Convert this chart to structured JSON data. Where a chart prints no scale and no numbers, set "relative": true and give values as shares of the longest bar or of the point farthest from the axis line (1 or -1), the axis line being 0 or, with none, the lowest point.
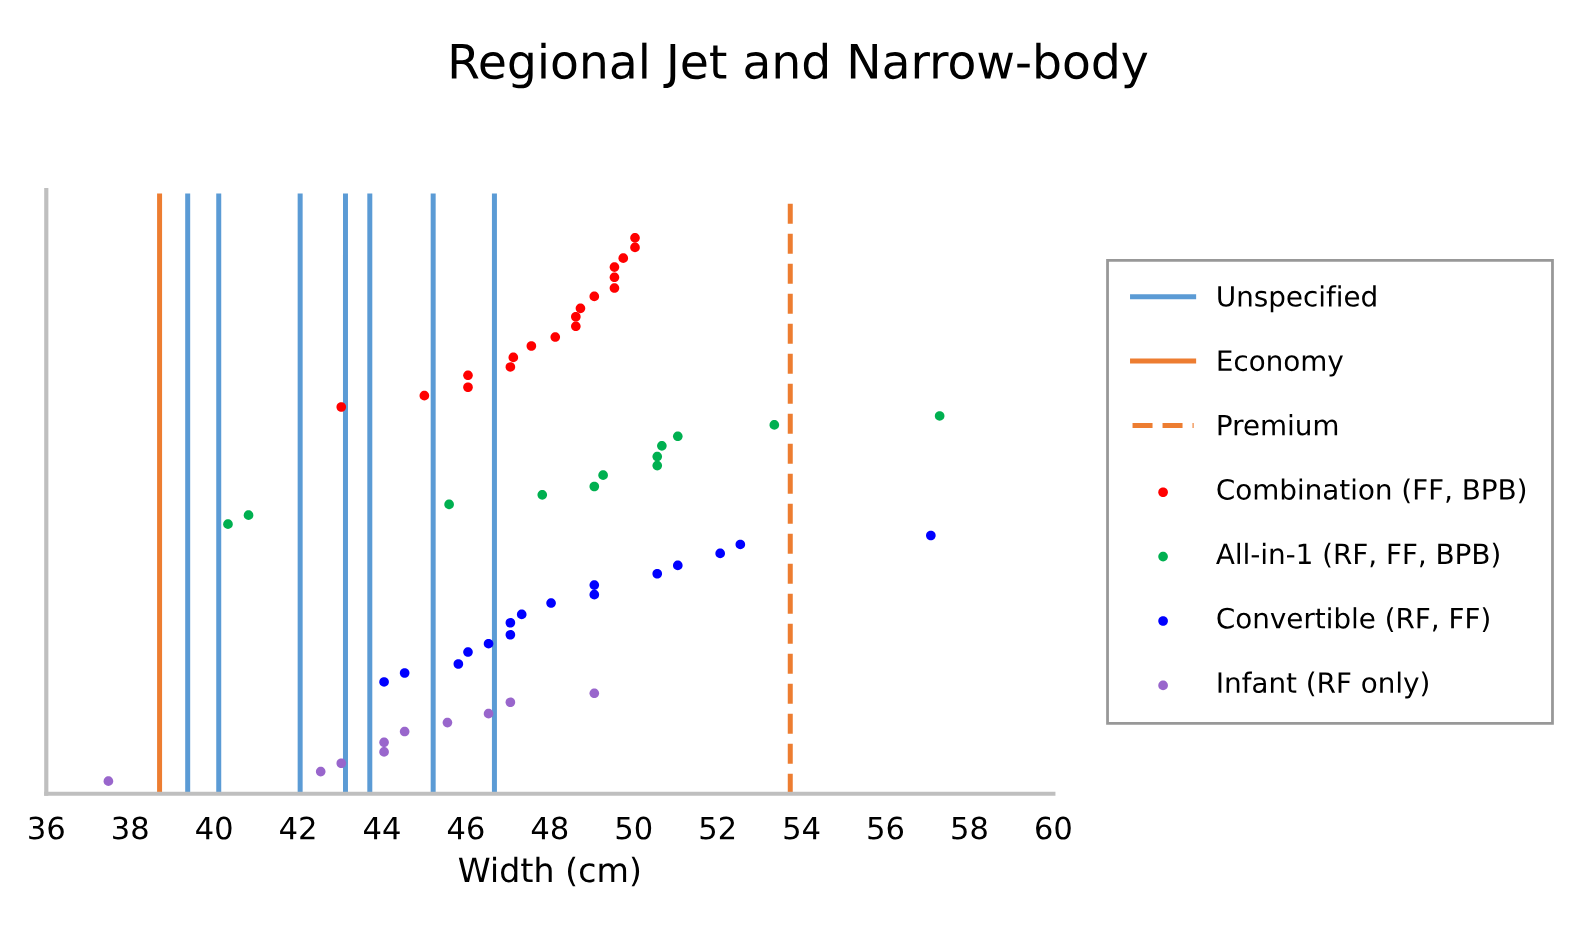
{
  "chart_data": {
    "type": "scatter",
    "title": "Regional Jet and Narrow-body",
    "xlabel": "Width (cm)",
    "relative": true,
    "xlim": [
      36,
      60
    ],
    "xticks": [
      36,
      38,
      40,
      42,
      44,
      46,
      48,
      50,
      52,
      54,
      56,
      58,
      60
    ],
    "legend": "right",
    "tick_labels": "x",
    "series": [
      {
        "name": "Unspecified",
        "type": "line",
        "color": "#5b9bd5",
        "line_style": "solid",
        "marker": "none",
        "x": [
          39.37,
          39.37,
          null,
          40.11,
          40.11,
          null,
          42.05,
          42.05,
          null,
          43.13,
          43.13,
          null,
          43.71,
          43.71,
          null,
          45.22,
          45.22,
          null,
          46.68,
          46.68
        ],
        "values": [
          0,
          1,
          null,
          0,
          1,
          null,
          0,
          1,
          null,
          0,
          1,
          null,
          0,
          1,
          null,
          0,
          1,
          null,
          0,
          1
        ]
      },
      {
        "name": "Economy",
        "type": "line",
        "color": "#ed7d31",
        "line_style": "solid",
        "marker": "none",
        "x": [
          38.7,
          38.7
        ],
        "values": [
          0,
          1
        ]
      },
      {
        "name": "Premium",
        "type": "line",
        "color": "#ed7d31",
        "line_style": "dashed",
        "marker": "none",
        "x": [
          53.73,
          53.73
        ],
        "values": [
          0,
          1
        ]
      },
      {
        "name": "Combination (FF, BPB)",
        "color": "#ff0000",
        "marker": "circle",
        "x": [
          43.03,
          45.01,
          46.05,
          46.05,
          47.06,
          47.13,
          47.56,
          48.13,
          48.62,
          48.62,
          48.73,
          49.06,
          49.54,
          49.54,
          49.54,
          49.75,
          50.03,
          50.03
        ],
        "values": [
          0.647,
          0.666,
          0.7,
          0.68,
          0.714,
          0.73,
          0.749,
          0.764,
          0.782,
          0.798,
          0.812,
          0.832,
          0.846,
          0.864,
          0.881,
          0.896,
          0.914,
          0.93
        ]
      },
      {
        "name": "All-in-1 (RF, FF, BPB)",
        "color": "#00b050",
        "marker": "circle",
        "x": [
          40.33,
          40.82,
          45.6,
          47.82,
          49.06,
          49.27,
          50.56,
          50.56,
          50.67,
          51.05,
          53.35,
          57.29
        ],
        "values": [
          0.451,
          0.466,
          0.484,
          0.5,
          0.514,
          0.533,
          0.549,
          0.564,
          0.582,
          0.598,
          0.617,
          0.632
        ]
      },
      {
        "name": "Convertible (RF, FF)",
        "color": "#0000ff",
        "marker": "circle",
        "x": [
          44.05,
          44.54,
          45.82,
          46.05,
          46.54,
          47.06,
          47.06,
          47.33,
          48.03,
          49.06,
          49.06,
          50.56,
          51.05,
          52.06,
          52.54,
          57.08
        ],
        "values": [
          0.187,
          0.202,
          0.217,
          0.237,
          0.251,
          0.266,
          0.286,
          0.3,
          0.319,
          0.333,
          0.349,
          0.368,
          0.382,
          0.402,
          0.417,
          0.432
        ]
      },
      {
        "name": "Infant (RF only)",
        "color": "#9966cc",
        "marker": "circle",
        "x": [
          37.48,
          42.54,
          43.03,
          44.05,
          44.05,
          44.54,
          45.56,
          46.54,
          47.06,
          49.06
        ],
        "values": [
          0.021,
          0.037,
          0.051,
          0.07,
          0.086,
          0.104,
          0.119,
          0.134,
          0.153,
          0.168
        ]
      }
    ]
  }
}
